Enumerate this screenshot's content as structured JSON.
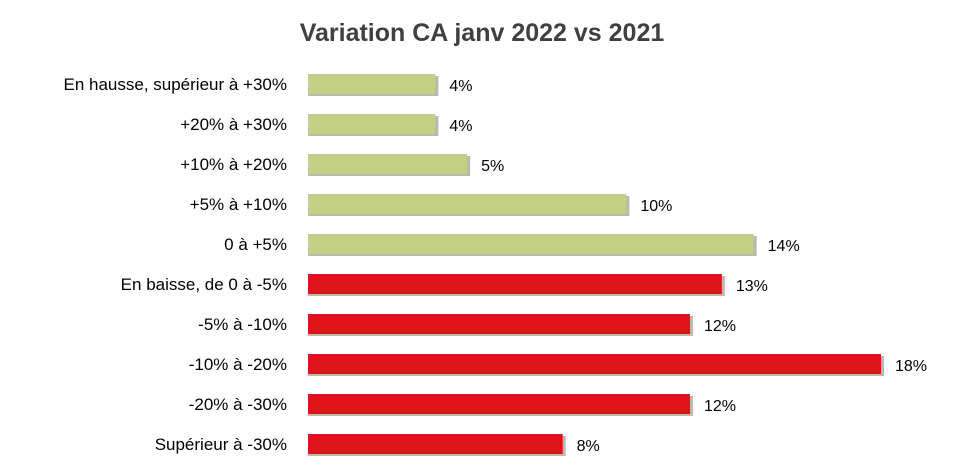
{
  "chart_data": {
    "type": "bar",
    "orientation": "horizontal",
    "title": "Variation CA janv 2022 vs 2021",
    "xlabel": "",
    "ylabel": "",
    "grid": false,
    "legend": "none",
    "categories": [
      "En hausse, supérieur à +30%",
      "+20% à +30%",
      "+10% à +20%",
      "+5% à +10%",
      "0 à +5%",
      "En baisse, de 0 à -5%",
      "-5% à -10%",
      "-10% à -20%",
      "-20% à -30%",
      "Supérieur à -30%"
    ],
    "values": [
      4,
      4,
      5,
      10,
      14,
      13,
      12,
      18,
      12,
      8
    ],
    "value_labels": [
      "4%",
      "4%",
      "5%",
      "10%",
      "14%",
      "13%",
      "12%",
      "18%",
      "12%",
      "8%"
    ],
    "bar_colors": [
      "#c3cf84",
      "#c3cf84",
      "#c3cf84",
      "#c3cf84",
      "#c3cf84",
      "#e0131b",
      "#e0131b",
      "#e0131b",
      "#e0131b",
      "#e0131b"
    ],
    "xlim": [
      0,
      18
    ]
  }
}
